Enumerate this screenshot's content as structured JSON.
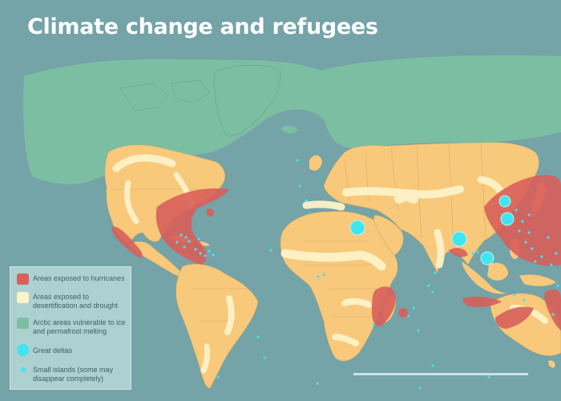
{
  "title": "Climate change and refugees",
  "colors": {
    "ocean": "#74a3a8",
    "land": "#f8c97b",
    "arctic": "#7cbea2",
    "hurricane": "#d95f5a",
    "desertification": "#fdf3c8",
    "delta_and_island": "#3fe6f0",
    "borders": "#c6a66a"
  },
  "legend": {
    "items": [
      {
        "label": "Areas exposed to hurricanes",
        "symbol": "red-swatch"
      },
      {
        "label": "Areas exposed to desertification and drought",
        "symbol": "pale-yellow-swatch"
      },
      {
        "label": "Arctic areas vulnerable to ice and permafrost melting",
        "symbol": "green-swatch"
      },
      {
        "label": "Great deltas",
        "symbol": "large-cyan-dot"
      },
      {
        "label": "Small islands (some may disappear completely)",
        "symbol": "small-cyan-dot"
      }
    ]
  },
  "map_features": {
    "great_deltas": [
      "Nile delta",
      "Ganges-Brahmaputra delta",
      "Yellow River delta",
      "Yangtze delta",
      "Mekong delta"
    ],
    "hurricane_zones": [
      "Caribbean and Gulf of Mexico",
      "Pacific coast of Mexico",
      "Mozambique and Madagascar",
      "Bay of Bengal",
      "East and Southeast Asia",
      "Northern Australia"
    ]
  }
}
